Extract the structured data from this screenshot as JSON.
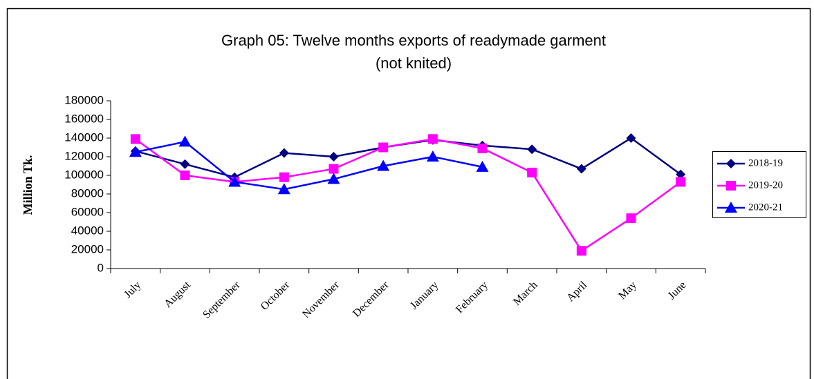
{
  "chart_data": {
    "type": "line",
    "title": "Graph 05: Twelve months exports of readymade garment",
    "subtitle": "(not knited)",
    "y_label": "Million Tk.",
    "categories": [
      "July",
      "August",
      "September",
      "October",
      "November",
      "December",
      "January",
      "February",
      "March",
      "April",
      "May",
      "June"
    ],
    "series": [
      {
        "name": "2018-19",
        "color": "#000080",
        "marker": "diamond",
        "values": [
          126000,
          112000,
          98000,
          124000,
          120000,
          130000,
          138000,
          132000,
          128000,
          107000,
          140000,
          101000
        ]
      },
      {
        "name": "2019-20",
        "color": "#ff00ff",
        "marker": "square",
        "values": [
          139000,
          100000,
          93000,
          98000,
          107000,
          130000,
          139000,
          129000,
          103000,
          19000,
          54000,
          93000
        ]
      },
      {
        "name": "2020-21",
        "color": "#0000ff",
        "marker": "triangle",
        "values": [
          125000,
          136000,
          93000,
          85000,
          96000,
          110000,
          120000,
          109000,
          null,
          null,
          null,
          null
        ]
      }
    ],
    "ylim": [
      0,
      180000
    ],
    "yticks": [
      0,
      20000,
      40000,
      60000,
      80000,
      100000,
      120000,
      140000,
      160000,
      180000
    ],
    "grid": false,
    "legend": "right"
  }
}
